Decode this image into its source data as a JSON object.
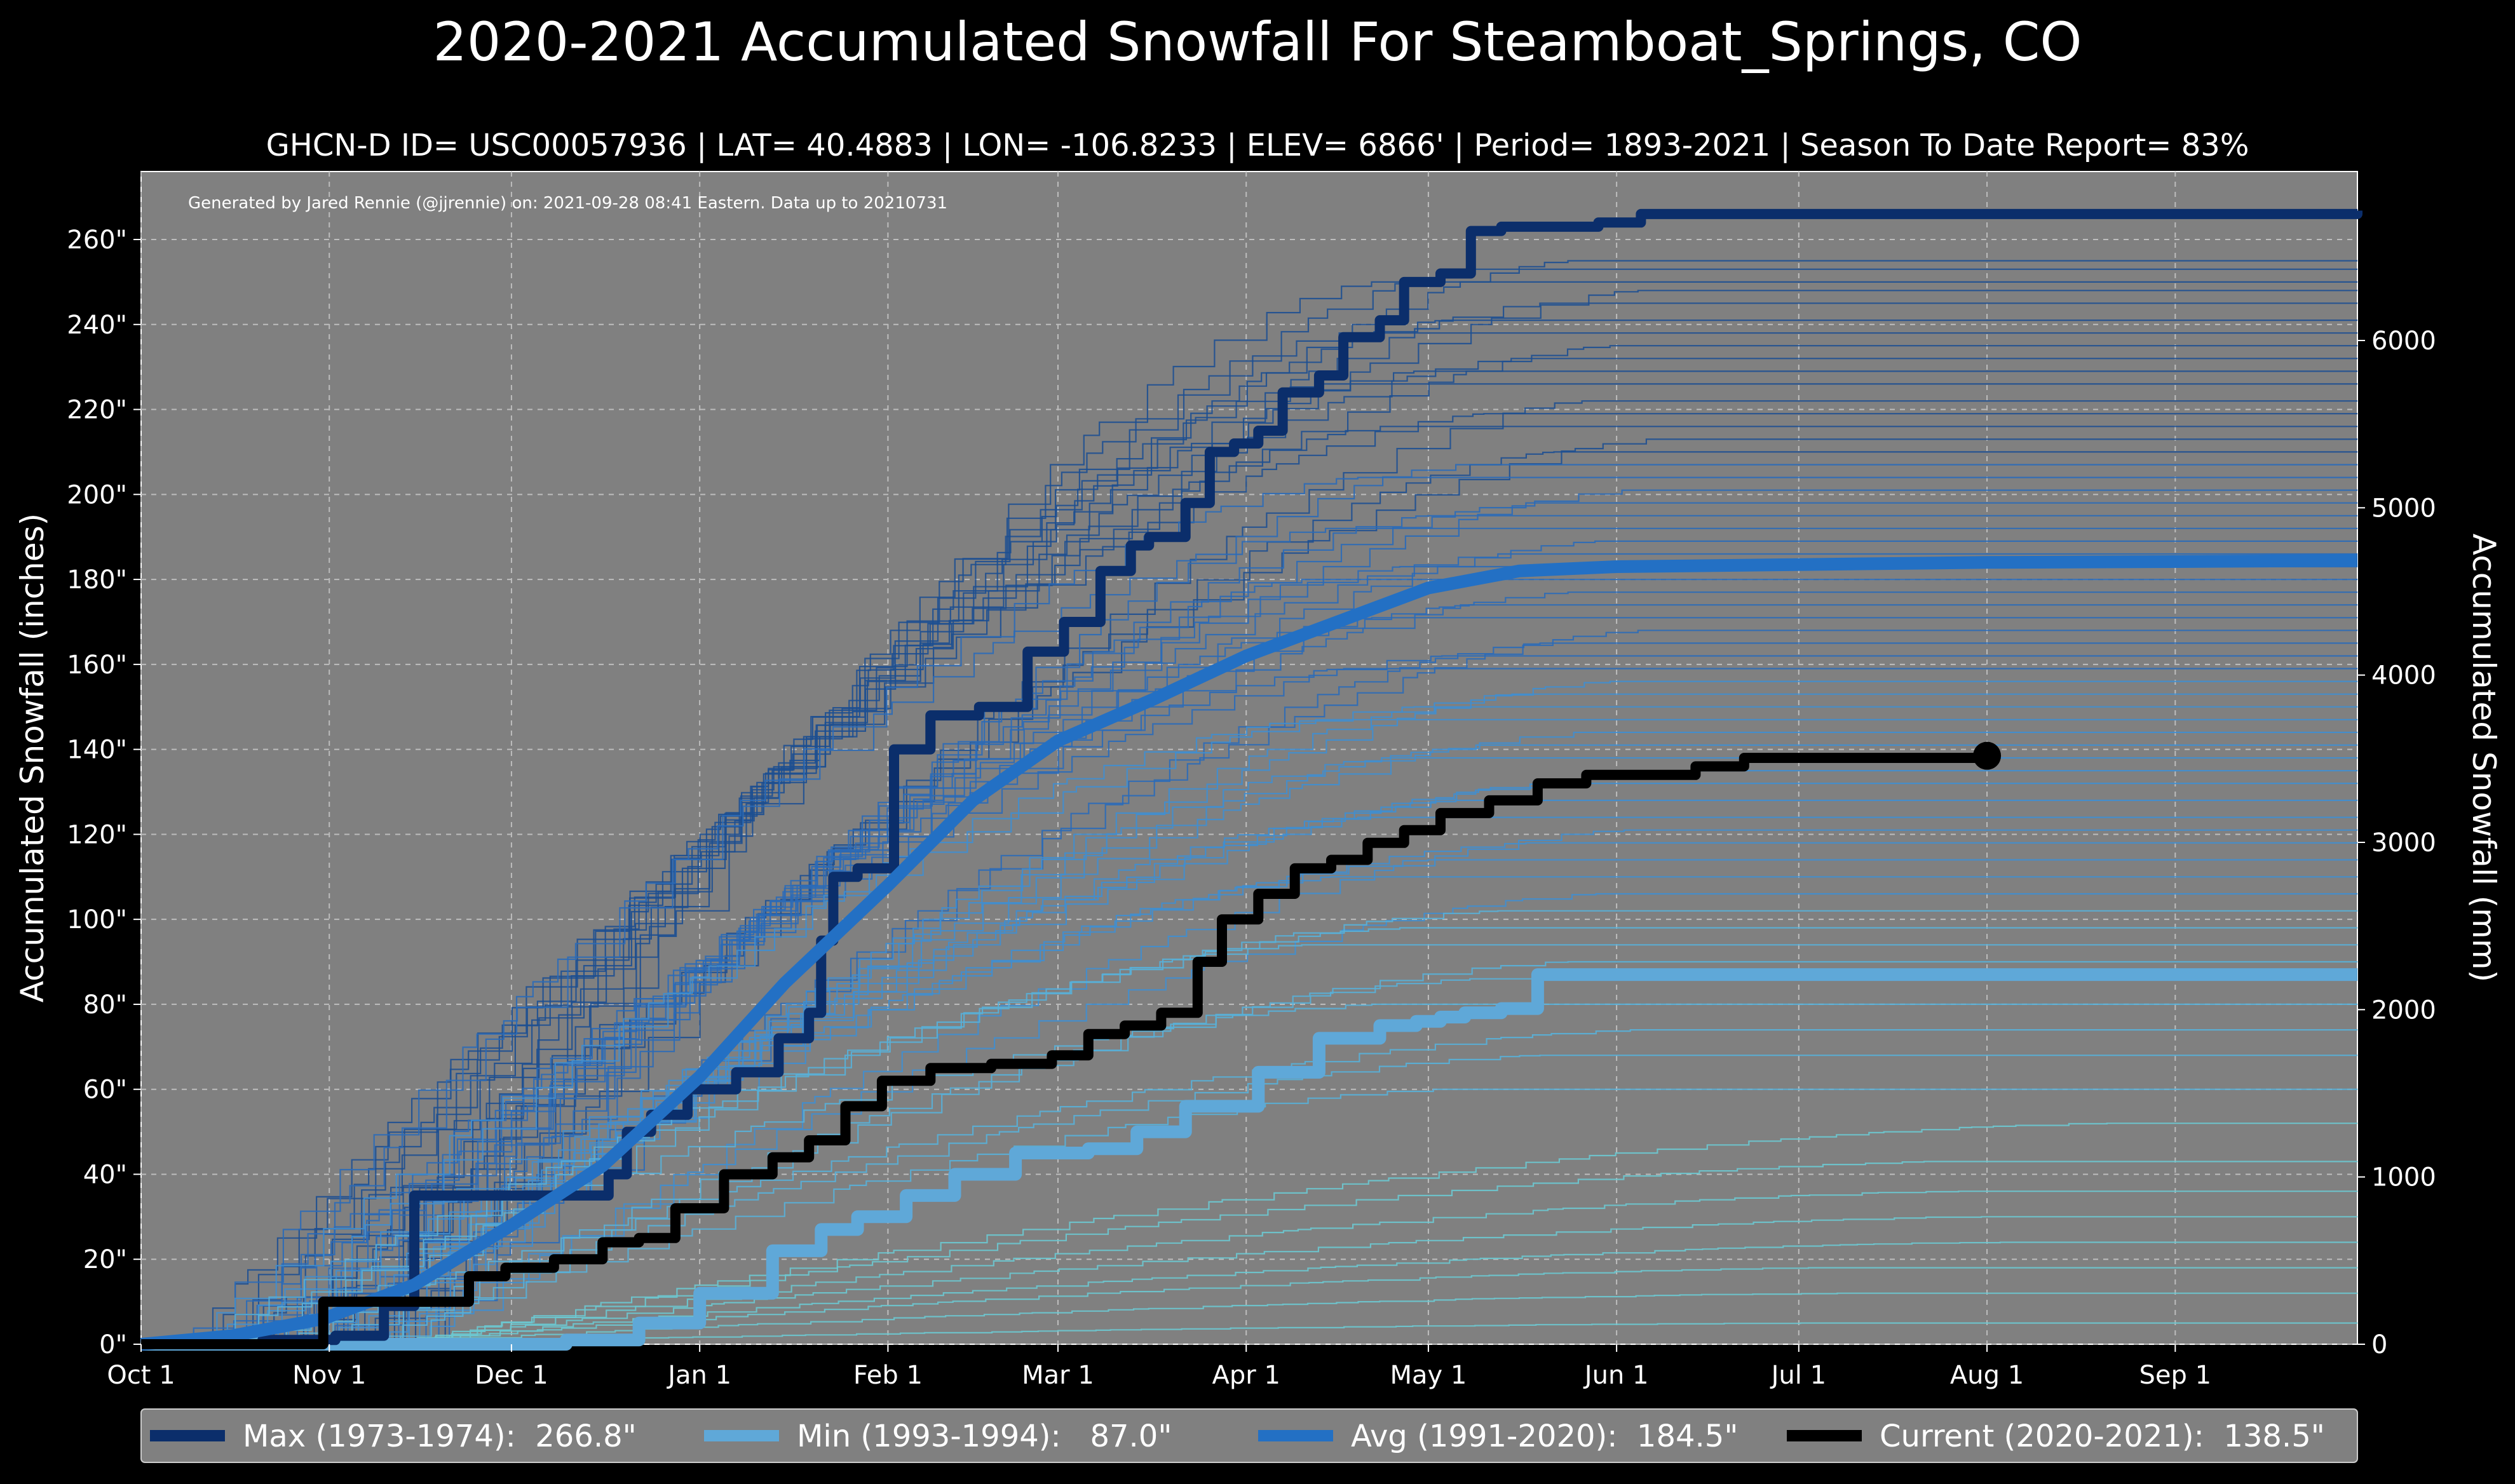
{
  "header": {
    "title": "2020-2021 Accumulated Snowfall For Steamboat_Springs, CO",
    "subtitle": "GHCN-D ID= USC00057936 | LAT= 40.4883 | LON= -106.8233 | ELEV= 6866' | Period= 1893-2021 | Season To Date Report= 83%",
    "credit": "Generated by Jared Rennie (@jjrennie) on: 2021-09-28 08:41 Eastern. Data up to 20210731"
  },
  "colors": {
    "background": "#000000",
    "plot_background": "#808080",
    "max": "#0b2e6b",
    "min": "#5fa8d8",
    "avg": "#2370c4",
    "current": "#000000",
    "history_lines": [
      "#1d4f91",
      "#2a6ab8",
      "#3f8ed0",
      "#58b0d8",
      "#6cc8d0"
    ]
  },
  "chart_data": {
    "type": "line",
    "title": "2020-2021 Accumulated Snowfall For Steamboat_Springs, CO",
    "ylabel": "Accumulated Snowfall (inches)",
    "y2label": "Accumulated Snowfall (mm)",
    "xlim": [
      0,
      365
    ],
    "ylim": [
      0,
      276
    ],
    "y2lim": [
      0,
      7010
    ],
    "grid": true,
    "legend_position": "bottom",
    "x_ticks": [
      {
        "day": 0,
        "label": "Oct 1"
      },
      {
        "day": 31,
        "label": "Nov 1"
      },
      {
        "day": 61,
        "label": "Dec 1"
      },
      {
        "day": 92,
        "label": "Jan 1"
      },
      {
        "day": 123,
        "label": "Feb 1"
      },
      {
        "day": 151,
        "label": "Mar 1"
      },
      {
        "day": 182,
        "label": "Apr 1"
      },
      {
        "day": 212,
        "label": "May 1"
      },
      {
        "day": 243,
        "label": "Jun 1"
      },
      {
        "day": 273,
        "label": "Jul 1"
      },
      {
        "day": 304,
        "label": "Aug 1"
      },
      {
        "day": 335,
        "label": "Sep 1"
      }
    ],
    "y_ticks": [
      {
        "value": 0,
        "label": "0\""
      },
      {
        "value": 20,
        "label": "20\""
      },
      {
        "value": 40,
        "label": "40\""
      },
      {
        "value": 60,
        "label": "60\""
      },
      {
        "value": 80,
        "label": "80\""
      },
      {
        "value": 100,
        "label": "100\""
      },
      {
        "value": 120,
        "label": "120\""
      },
      {
        "value": 140,
        "label": "140\""
      },
      {
        "value": 160,
        "label": "160\""
      },
      {
        "value": 180,
        "label": "180\""
      },
      {
        "value": 200,
        "label": "200\""
      },
      {
        "value": 220,
        "label": "220\""
      },
      {
        "value": 240,
        "label": "240\""
      },
      {
        "value": 260,
        "label": "260\""
      }
    ],
    "y2_ticks": [
      {
        "value": 0,
        "label": "0"
      },
      {
        "value": 1000,
        "label": "1000"
      },
      {
        "value": 2000,
        "label": "2000"
      },
      {
        "value": 3000,
        "label": "3000"
      },
      {
        "value": 4000,
        "label": "4000"
      },
      {
        "value": 5000,
        "label": "5000"
      },
      {
        "value": 6000,
        "label": "6000"
      }
    ],
    "history_finals": [
      255,
      253,
      250,
      248,
      245,
      241,
      238,
      235,
      232,
      229,
      226,
      222,
      219,
      216,
      213,
      210,
      207,
      204,
      201,
      198,
      195,
      192,
      189,
      186,
      183,
      180,
      177,
      174,
      171,
      168,
      165,
      162,
      159,
      156,
      153,
      150,
      147,
      144,
      141,
      138,
      135,
      132,
      128,
      124,
      121,
      118,
      114,
      110,
      106,
      102,
      98,
      94,
      90,
      86,
      80,
      74,
      68,
      60,
      52,
      43,
      36,
      30,
      24,
      18,
      12,
      5
    ],
    "series": [
      {
        "name": "Max (1973-1974):  266.8\"",
        "role": "max",
        "points": [
          [
            0,
            0
          ],
          [
            20,
            1
          ],
          [
            32,
            2
          ],
          [
            40,
            9
          ],
          [
            45,
            35
          ],
          [
            70,
            35
          ],
          [
            77,
            40
          ],
          [
            80,
            50
          ],
          [
            84,
            54
          ],
          [
            90,
            60
          ],
          [
            98,
            64
          ],
          [
            105,
            72
          ],
          [
            110,
            78
          ],
          [
            112,
            95
          ],
          [
            114,
            110
          ],
          [
            118,
            112
          ],
          [
            124,
            140
          ],
          [
            130,
            148
          ],
          [
            138,
            150
          ],
          [
            146,
            163
          ],
          [
            152,
            170
          ],
          [
            158,
            182
          ],
          [
            163,
            188
          ],
          [
            166,
            190
          ],
          [
            172,
            198
          ],
          [
            176,
            210
          ],
          [
            180,
            212
          ],
          [
            184,
            215
          ],
          [
            188,
            224
          ],
          [
            194,
            228
          ],
          [
            198,
            237
          ],
          [
            204,
            241
          ],
          [
            208,
            250
          ],
          [
            214,
            252
          ],
          [
            219,
            262
          ],
          [
            224,
            263
          ],
          [
            240,
            264
          ],
          [
            247,
            266
          ],
          [
            365,
            266.8
          ]
        ]
      },
      {
        "name": "Min (1993-1994):   87.0\"",
        "role": "min",
        "points": [
          [
            0,
            0
          ],
          [
            60,
            0
          ],
          [
            70,
            1
          ],
          [
            82,
            5
          ],
          [
            92,
            12
          ],
          [
            104,
            22
          ],
          [
            112,
            27
          ],
          [
            118,
            30
          ],
          [
            126,
            35
          ],
          [
            134,
            40
          ],
          [
            144,
            45
          ],
          [
            156,
            46
          ],
          [
            164,
            50
          ],
          [
            172,
            56
          ],
          [
            184,
            64
          ],
          [
            194,
            72
          ],
          [
            204,
            75
          ],
          [
            210,
            76
          ],
          [
            214,
            77
          ],
          [
            218,
            78
          ],
          [
            224,
            79
          ],
          [
            230,
            87
          ],
          [
            365,
            87
          ]
        ]
      },
      {
        "name": "Avg (1991-2020):  184.5\"",
        "role": "avg",
        "points": [
          [
            0,
            0
          ],
          [
            15,
            2
          ],
          [
            30,
            6
          ],
          [
            45,
            14
          ],
          [
            61,
            28
          ],
          [
            76,
            42
          ],
          [
            92,
            63
          ],
          [
            106,
            85
          ],
          [
            123,
            108
          ],
          [
            137,
            128
          ],
          [
            151,
            142
          ],
          [
            167,
            152
          ],
          [
            182,
            162
          ],
          [
            197,
            170
          ],
          [
            212,
            178
          ],
          [
            227,
            182
          ],
          [
            243,
            183
          ],
          [
            273,
            183.5
          ],
          [
            304,
            184
          ],
          [
            335,
            184.2
          ],
          [
            365,
            184.5
          ]
        ]
      },
      {
        "name": "Current (2020-2021):  138.5\"",
        "role": "current",
        "points": [
          [
            0,
            0
          ],
          [
            25,
            0
          ],
          [
            30,
            10
          ],
          [
            48,
            10
          ],
          [
            54,
            16
          ],
          [
            60,
            18
          ],
          [
            68,
            20
          ],
          [
            76,
            24
          ],
          [
            82,
            25
          ],
          [
            88,
            32
          ],
          [
            96,
            40
          ],
          [
            104,
            44
          ],
          [
            110,
            48
          ],
          [
            116,
            56
          ],
          [
            122,
            62
          ],
          [
            130,
            65
          ],
          [
            140,
            66
          ],
          [
            150,
            68
          ],
          [
            156,
            73
          ],
          [
            162,
            75
          ],
          [
            168,
            78
          ],
          [
            174,
            90
          ],
          [
            178,
            100
          ],
          [
            184,
            106
          ],
          [
            190,
            112
          ],
          [
            196,
            114
          ],
          [
            202,
            118
          ],
          [
            208,
            121
          ],
          [
            214,
            125
          ],
          [
            222,
            128
          ],
          [
            230,
            132
          ],
          [
            238,
            134
          ],
          [
            246,
            134
          ],
          [
            256,
            136
          ],
          [
            264,
            138
          ],
          [
            304,
            138.5
          ]
        ]
      }
    ]
  }
}
